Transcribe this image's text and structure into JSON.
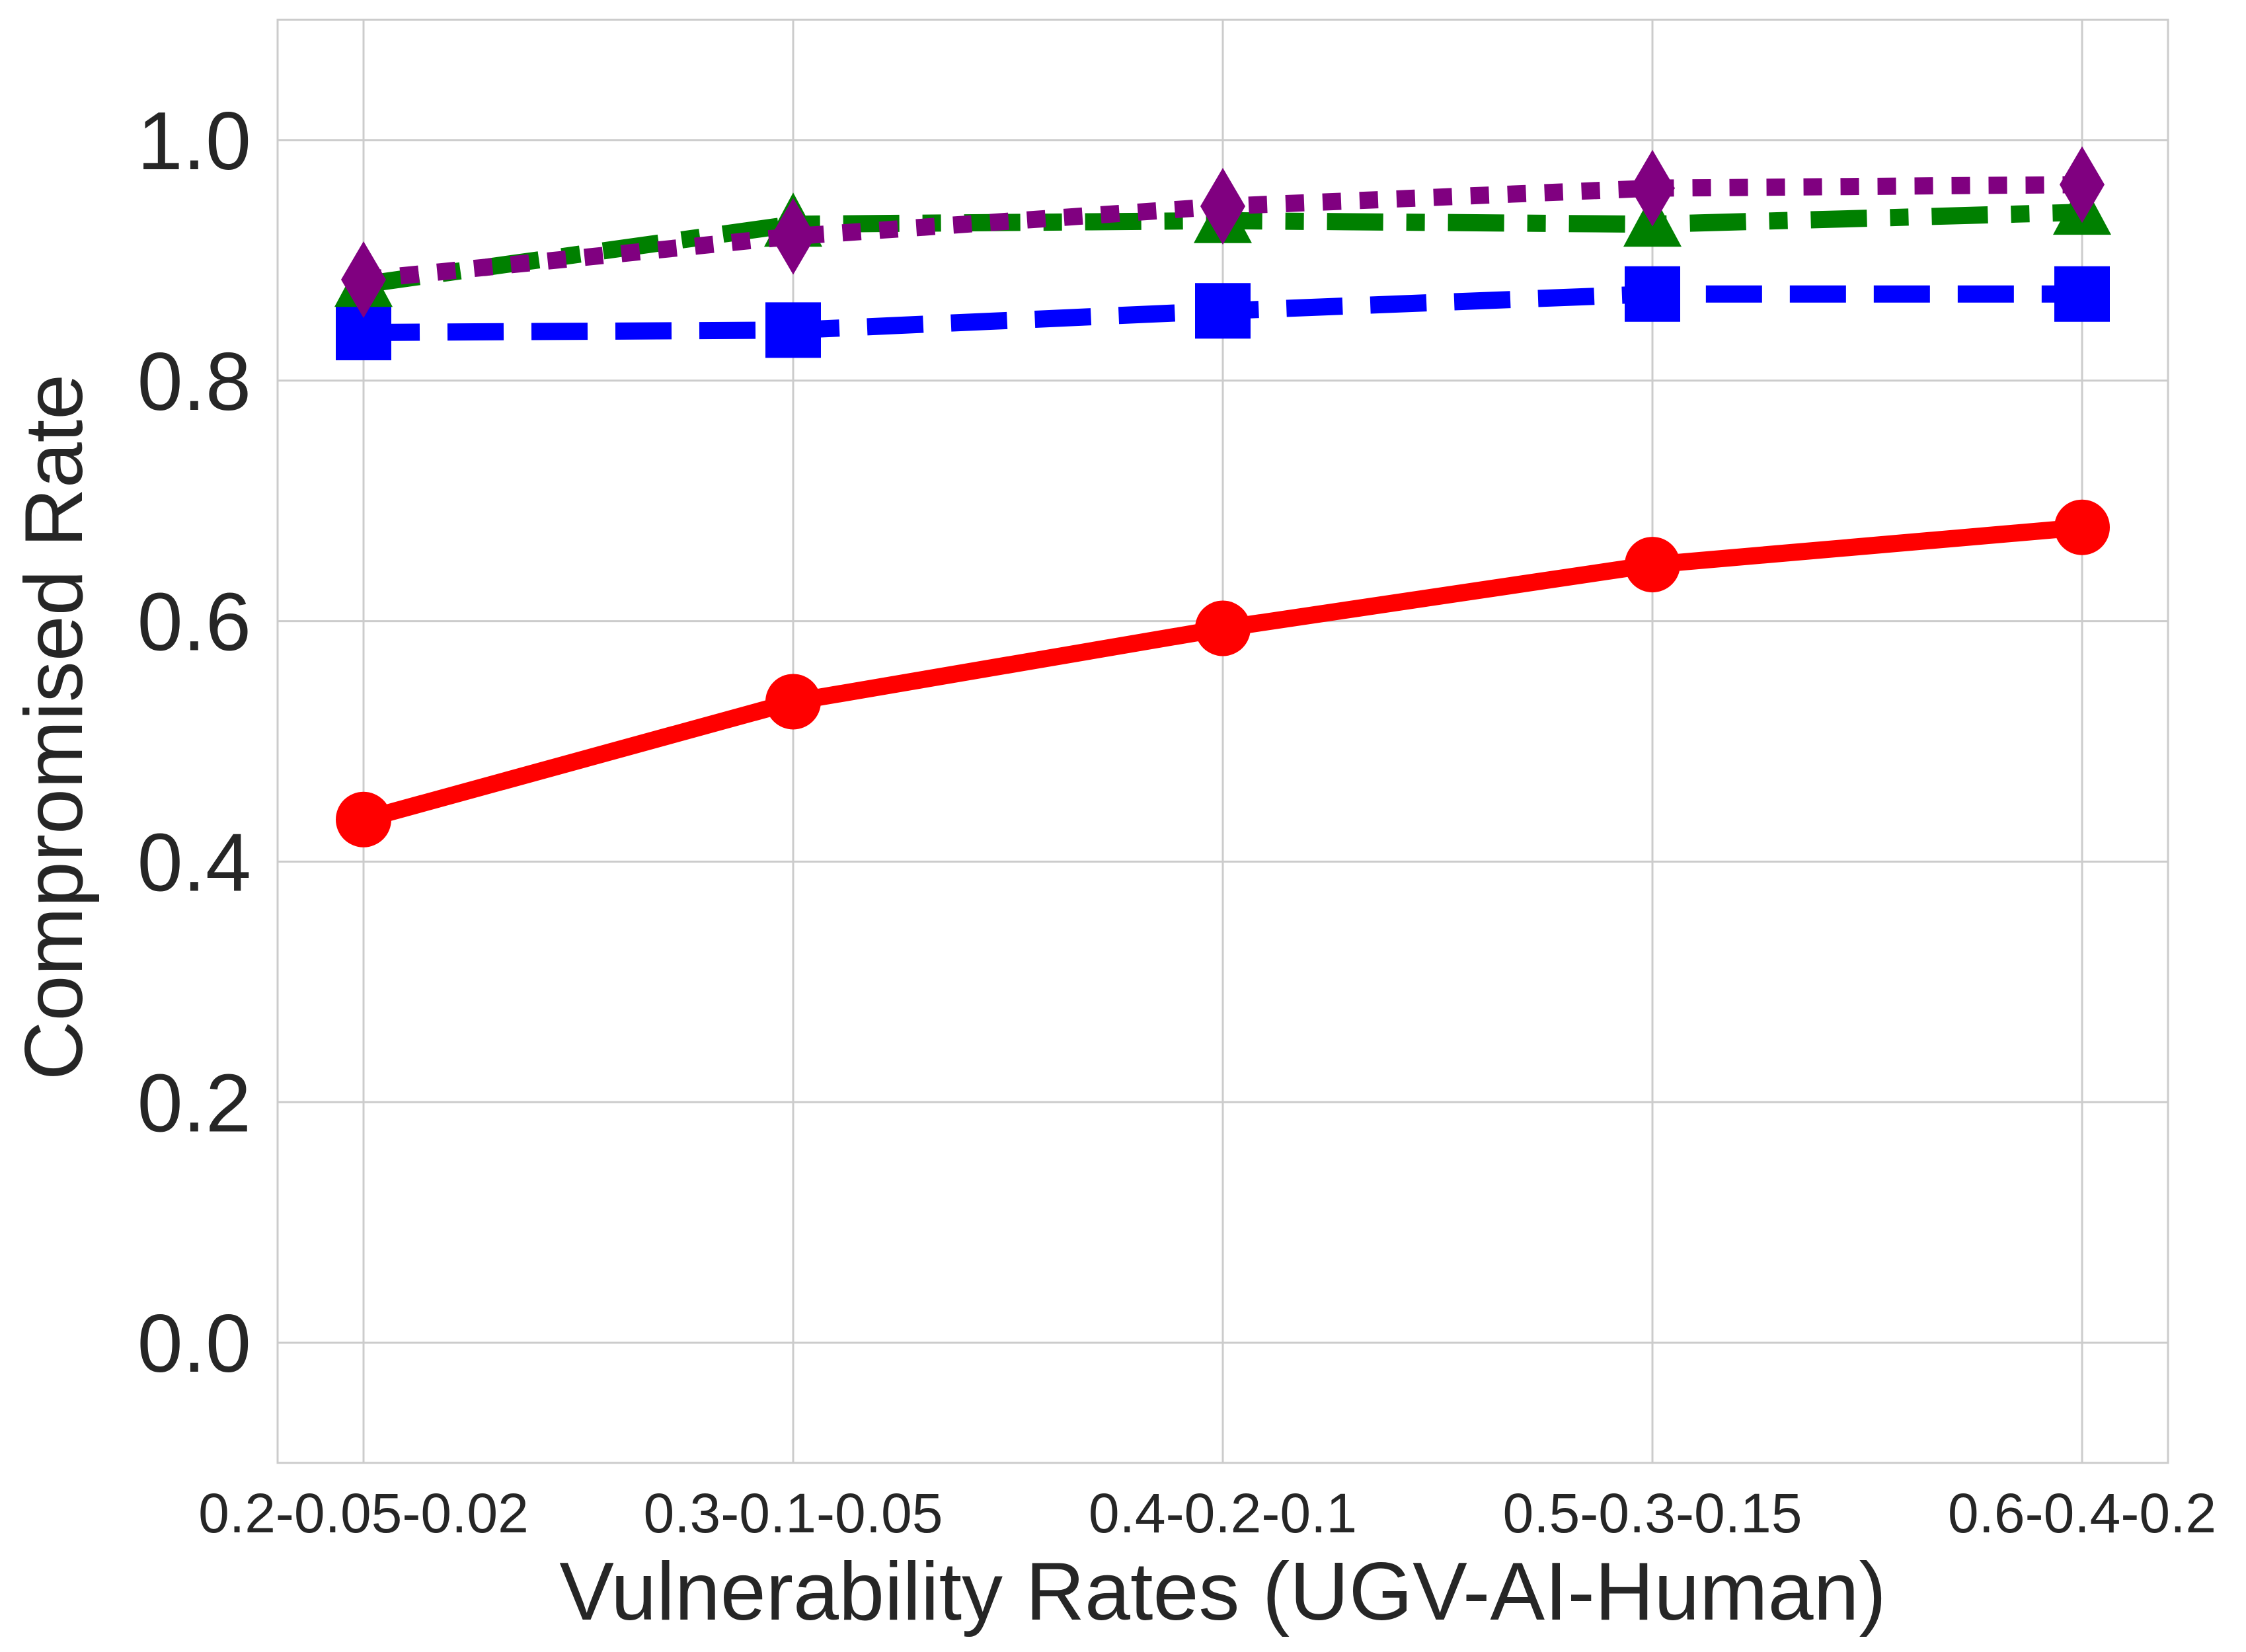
{
  "chart_data": {
    "type": "line",
    "title": "",
    "xlabel": "Vulnerability Rates (UGV-AI-Human)",
    "ylabel": "Compromised Rate",
    "categories": [
      "0.2-0.05-0.02",
      "0.3-0.1-0.05",
      "0.4-0.2-0.1",
      "0.5-0.3-0.15",
      "0.6-0.4-0.2"
    ],
    "ylim": [
      -0.1,
      1.1
    ],
    "yticks": [
      0.0,
      0.2,
      0.4,
      0.6,
      0.8,
      1.0
    ],
    "ytick_labels": [
      "0.0",
      "0.2",
      "0.4",
      "0.6",
      "0.8",
      "1.0"
    ],
    "grid": true,
    "series": [
      {
        "values": [
          0.435,
          0.533,
          0.594,
          0.647,
          0.678
        ],
        "color": "#ff0000",
        "marker": "circle",
        "linestyle": "solid"
      },
      {
        "values": [
          0.84,
          0.842,
          0.858,
          0.872,
          0.872
        ],
        "color": "#0000ff",
        "marker": "square",
        "linestyle": "dashed"
      },
      {
        "values": [
          0.88,
          0.93,
          0.933,
          0.93,
          0.94
        ],
        "color": "#008000",
        "marker": "triangle",
        "linestyle": "dashdot"
      },
      {
        "values": [
          0.884,
          0.92,
          0.945,
          0.96,
          0.963
        ],
        "color": "#800080",
        "marker": "diamond",
        "linestyle": "dotted"
      }
    ]
  }
}
